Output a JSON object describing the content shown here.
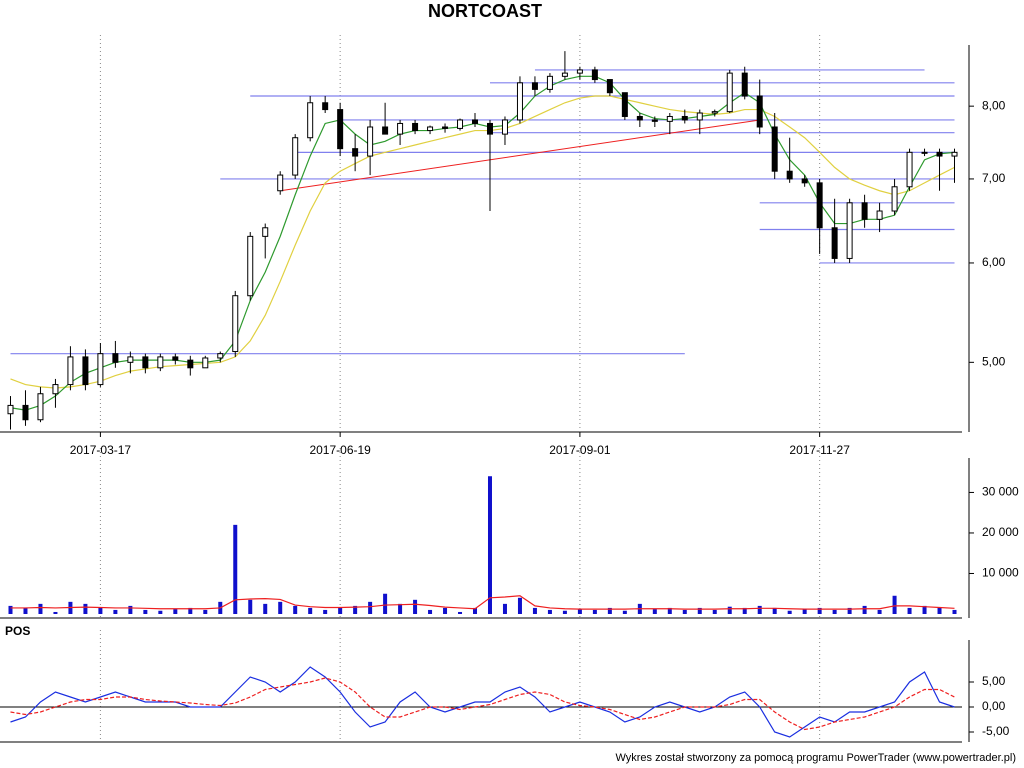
{
  "chart_data": [
    {
      "type": "candlestick",
      "title": "NORTCOAST",
      "log_scale": true,
      "categories": [
        null,
        null,
        null,
        null,
        null,
        null,
        "2017-03-17",
        null,
        null,
        null,
        null,
        null,
        null,
        null,
        null,
        null,
        null,
        null,
        null,
        null,
        null,
        null,
        "2017-06-19",
        null,
        null,
        null,
        null,
        null,
        null,
        null,
        null,
        null,
        null,
        null,
        null,
        null,
        null,
        null,
        "2017-09-01",
        null,
        null,
        null,
        null,
        null,
        null,
        null,
        null,
        null,
        null,
        null,
        null,
        null,
        null,
        null,
        "2017-11-27",
        null,
        null,
        null,
        null,
        null,
        null,
        null,
        null,
        null
      ],
      "open": [
        4.55,
        4.62,
        4.5,
        4.72,
        4.8,
        5.05,
        4.8,
        5.08,
        5.0,
        5.05,
        4.95,
        5.05,
        5.02,
        4.95,
        5.04,
        5.1,
        5.65,
        6.3,
        6.85,
        7.05,
        7.55,
        8.05,
        7.95,
        7.4,
        7.3,
        7.7,
        7.6,
        7.75,
        7.65,
        7.7,
        7.68,
        7.8,
        7.75,
        7.6,
        7.8,
        8.35,
        8.25,
        8.45,
        8.5,
        8.55,
        8.4,
        8.2,
        7.85,
        7.8,
        7.78,
        7.85,
        7.8,
        7.9,
        7.92,
        8.5,
        8.15,
        7.7,
        7.1,
        7.0,
        6.95,
        6.4,
        6.05,
        6.7,
        6.5,
        6.6,
        6.9,
        7.35,
        7.35,
        7.3
      ],
      "high": [
        4.7,
        4.75,
        4.78,
        4.85,
        5.15,
        5.12,
        5.18,
        5.2,
        5.1,
        5.08,
        5.08,
        5.08,
        5.06,
        5.06,
        5.1,
        5.7,
        6.35,
        6.45,
        7.1,
        7.6,
        8.15,
        8.15,
        8.05,
        7.6,
        7.8,
        8.05,
        7.8,
        7.8,
        7.72,
        7.75,
        7.82,
        7.9,
        7.8,
        7.85,
        8.45,
        8.45,
        8.5,
        8.85,
        8.6,
        8.6,
        8.4,
        8.2,
        7.9,
        7.85,
        7.9,
        7.95,
        7.95,
        7.95,
        8.55,
        8.6,
        8.4,
        7.9,
        7.55,
        7.05,
        7.0,
        6.75,
        6.75,
        6.8,
        6.7,
        7.0,
        7.4,
        7.4,
        7.4,
        7.4
      ],
      "low": [
        4.42,
        4.45,
        4.48,
        4.6,
        4.75,
        4.75,
        4.78,
        4.95,
        4.9,
        4.9,
        4.92,
        4.98,
        4.88,
        4.95,
        5.0,
        5.05,
        5.6,
        6.05,
        6.8,
        7.0,
        7.5,
        7.9,
        7.3,
        7.1,
        7.05,
        7.6,
        7.45,
        7.6,
        7.6,
        7.62,
        7.65,
        7.7,
        6.6,
        7.45,
        7.75,
        8.15,
        8.2,
        8.4,
        8.4,
        8.35,
        8.15,
        7.8,
        7.7,
        7.7,
        7.6,
        7.75,
        7.6,
        7.85,
        7.9,
        8.1,
        7.6,
        7.0,
        6.95,
        6.9,
        6.1,
        6.0,
        6.0,
        6.4,
        6.35,
        6.55,
        6.85,
        7.3,
        6.85,
        6.95
      ],
      "close": [
        4.62,
        4.5,
        4.72,
        4.8,
        5.05,
        4.8,
        5.08,
        5.0,
        5.05,
        4.95,
        5.05,
        5.02,
        4.95,
        5.04,
        5.08,
        5.65,
        6.3,
        6.4,
        7.05,
        7.55,
        8.05,
        7.95,
        7.4,
        7.3,
        7.7,
        7.6,
        7.75,
        7.65,
        7.7,
        7.68,
        7.8,
        7.75,
        7.6,
        7.8,
        8.35,
        8.25,
        8.45,
        8.5,
        8.55,
        8.4,
        8.2,
        7.85,
        7.8,
        7.78,
        7.85,
        7.8,
        7.9,
        7.92,
        8.5,
        8.15,
        7.7,
        7.1,
        7.0,
        6.95,
        6.4,
        6.05,
        6.7,
        6.5,
        6.6,
        6.9,
        7.35,
        7.35,
        7.3,
        7.35
      ],
      "series": [
        {
          "color": "#2e9a2e",
          "values": [
            4.6,
            4.58,
            4.62,
            4.7,
            4.82,
            4.9,
            4.95,
            5.0,
            5.02,
            5.02,
            5.02,
            5.02,
            5.0,
            5.0,
            5.02,
            5.2,
            5.6,
            5.9,
            6.3,
            6.8,
            7.3,
            7.75,
            7.8,
            7.6,
            7.45,
            7.5,
            7.6,
            7.65,
            7.65,
            7.68,
            7.7,
            7.75,
            7.7,
            7.72,
            7.9,
            8.15,
            8.3,
            8.4,
            8.45,
            8.45,
            8.35,
            8.1,
            7.9,
            7.82,
            7.8,
            7.82,
            7.85,
            7.88,
            8.05,
            8.2,
            8.05,
            7.6,
            7.25,
            7.05,
            6.7,
            6.45,
            6.45,
            6.5,
            6.5,
            6.55,
            6.9,
            7.25,
            7.33,
            7.35
          ]
        },
        {
          "color": "#e0d040",
          "values": [
            4.85,
            4.8,
            4.78,
            4.77,
            4.78,
            4.8,
            4.83,
            4.88,
            4.92,
            4.94,
            4.96,
            4.97,
            4.98,
            4.99,
            5.0,
            5.05,
            5.2,
            5.45,
            5.8,
            6.2,
            6.6,
            6.95,
            7.1,
            7.2,
            7.3,
            7.35,
            7.4,
            7.45,
            7.5,
            7.55,
            7.6,
            7.65,
            7.65,
            7.68,
            7.75,
            7.85,
            7.95,
            8.05,
            8.12,
            8.15,
            8.15,
            8.1,
            8.05,
            8.0,
            7.95,
            7.92,
            7.9,
            7.88,
            7.9,
            7.95,
            7.95,
            7.85,
            7.7,
            7.55,
            7.35,
            7.15,
            7.0,
            6.92,
            6.85,
            6.8,
            6.85,
            6.95,
            7.05,
            7.15
          ]
        }
      ],
      "levels": [
        {
          "value": 5.08,
          "from": 0,
          "to": 45
        },
        {
          "value": 7.0,
          "from": 14,
          "to": 63
        },
        {
          "value": 7.35,
          "from": 19,
          "to": 63
        },
        {
          "value": 7.62,
          "from": 32,
          "to": 63
        },
        {
          "value": 7.8,
          "from": 22,
          "to": 63
        },
        {
          "value": 8.15,
          "from": 16,
          "to": 63
        },
        {
          "value": 8.35,
          "from": 32,
          "to": 63
        },
        {
          "value": 8.55,
          "from": 35,
          "to": 61
        },
        {
          "value": 6.7,
          "from": 50,
          "to": 63
        },
        {
          "value": 6.38,
          "from": 50,
          "to": 63
        },
        {
          "value": 6.0,
          "from": 54,
          "to": 63
        }
      ],
      "level_color": "#8080ee",
      "trendline": {
        "color": "#ee2020",
        "from": 18,
        "from_value": 6.85,
        "to": 50,
        "to_value": 7.8
      },
      "ylim": [
        4.4,
        8.95
      ],
      "yticks": [
        {
          "value": 5,
          "label": "5,00"
        },
        {
          "value": 6,
          "label": "6,00"
        },
        {
          "value": 7,
          "label": "7,00"
        },
        {
          "value": 8,
          "label": "8,00"
        }
      ]
    },
    {
      "type": "bar",
      "color": "#1010cc",
      "values": [
        2000,
        1500,
        2500,
        500,
        3000,
        2500,
        1500,
        1000,
        2000,
        1000,
        800,
        1200,
        1500,
        1000,
        3000,
        22000,
        3500,
        2500,
        3000,
        2000,
        1500,
        1000,
        1500,
        2000,
        3000,
        5000,
        2500,
        3500,
        1000,
        1500,
        500,
        1500,
        34000,
        2500,
        4000,
        1500,
        1000,
        800,
        1200,
        1000,
        1500,
        800,
        2500,
        1200,
        1500,
        1000,
        1500,
        1000,
        1800,
        1500,
        2000,
        1500,
        800,
        1200,
        1500,
        1000,
        1500,
        2000,
        1000,
        4500,
        1500,
        2000,
        1500,
        1000
      ],
      "average": {
        "color": "#ee2020",
        "values": [
          1500,
          1500,
          1600,
          1500,
          1600,
          1700,
          1600,
          1500,
          1500,
          1400,
          1300,
          1300,
          1300,
          1300,
          1500,
          3500,
          3700,
          3800,
          3600,
          2200,
          1800,
          1600,
          1600,
          1700,
          1800,
          2200,
          2300,
          2400,
          2100,
          1700,
          1500,
          1300,
          4000,
          4200,
          4500,
          2000,
          1500,
          1300,
          1200,
          1200,
          1200,
          1200,
          1300,
          1300,
          1300,
          1200,
          1200,
          1200,
          1300,
          1300,
          1400,
          1400,
          1300,
          1200,
          1200,
          1200,
          1200,
          1300,
          1300,
          2000,
          2000,
          1800,
          1600,
          1400
        ]
      },
      "ylim": [
        0,
        38500
      ],
      "yticks": [
        {
          "value": 10000,
          "label": "10 000"
        },
        {
          "value": 20000,
          "label": "20 000"
        },
        {
          "value": 30000,
          "label": "30 000"
        }
      ]
    },
    {
      "type": "line",
      "title": "POS",
      "series": [
        {
          "color": "#1a2ee0",
          "values": [
            -3,
            -2,
            1,
            3,
            2,
            1,
            2,
            3,
            2,
            1,
            1,
            1,
            0,
            0,
            0,
            3,
            6,
            5,
            3,
            5,
            8,
            6,
            3,
            -1,
            -4,
            -3,
            1,
            3,
            0,
            -1,
            0,
            1,
            1,
            3,
            4,
            2,
            -1,
            0,
            1,
            0,
            -1,
            -3,
            -2,
            0,
            1,
            0,
            -1,
            0,
            2,
            3,
            0,
            -5,
            -6,
            -4,
            -2,
            -3,
            -1,
            -1,
            0,
            1,
            5,
            7,
            1,
            0
          ]
        },
        {
          "color": "#ee2020",
          "dashed": true,
          "values": [
            -1,
            -1.5,
            -1,
            0,
            1,
            1.5,
            1.5,
            2,
            2,
            1.5,
            1.2,
            1,
            0.8,
            0.5,
            0.3,
            0.8,
            2,
            3.5,
            4,
            4.5,
            5,
            5.8,
            5,
            3,
            0,
            -2,
            -2,
            -1,
            0,
            0,
            -0.5,
            0,
            0.5,
            1.5,
            2.5,
            3,
            2.5,
            1,
            0.3,
            0,
            -0.5,
            -1.5,
            -2.5,
            -2,
            -1,
            0,
            0,
            0,
            0.5,
            1.5,
            1.5,
            -1,
            -3,
            -4.5,
            -4,
            -3,
            -2.5,
            -2,
            -1,
            0,
            2,
            3.5,
            3.5,
            2
          ]
        }
      ],
      "ylim": [
        -7,
        13.4
      ],
      "yticks": [
        {
          "value": -5,
          "label": "-5,00"
        },
        {
          "value": 0,
          "label": "0,00"
        },
        {
          "value": 5,
          "label": "5,00"
        }
      ]
    }
  ],
  "footer": "Wykres został stworzony za pomocą programu PowerTrader (www.powertrader.pl)"
}
